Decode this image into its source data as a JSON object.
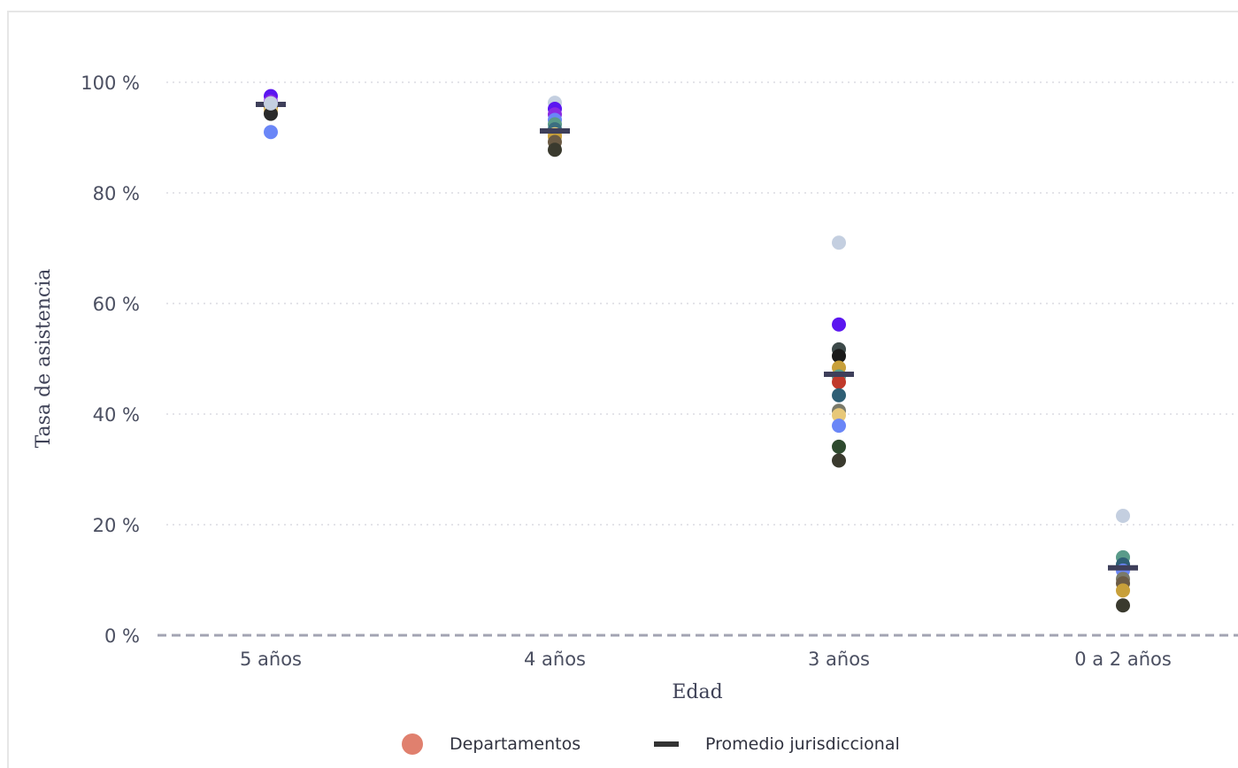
{
  "chart_data": {
    "type": "scatter",
    "xlabel": "Edad",
    "ylabel": "Tasa de asistencia",
    "categories": [
      "5 años",
      "4 años",
      "3 años",
      "0 a 2 años"
    ],
    "ylim": [
      0,
      100
    ],
    "yticks": [
      "0 %",
      "20 %",
      "40 %",
      "60 %",
      "80 %",
      "100 %"
    ],
    "yticks_values": [
      0,
      20,
      40,
      60,
      80,
      100
    ],
    "grid": true,
    "legend_position": "bottom-center",
    "series": [
      {
        "name": "Departamentos",
        "legend_color": "#e0806e",
        "points": [
          {
            "category": "5 años",
            "value": 97.5,
            "color": "#5b16f0"
          },
          {
            "category": "5 años",
            "value": 96.5,
            "color": "#8a2be2"
          },
          {
            "category": "5 años",
            "value": 95.5,
            "color": "#3d3f55"
          },
          {
            "category": "5 años",
            "value": 95.2,
            "color": "#c8a03a"
          },
          {
            "category": "5 años",
            "value": 94.8,
            "color": "#e8c878"
          },
          {
            "category": "5 años",
            "value": 94.3,
            "color": "#2a2a2a"
          },
          {
            "category": "5 años",
            "value": 96.2,
            "color": "#c4cfe0"
          },
          {
            "category": "5 años",
            "value": 91.0,
            "color": "#6a86f7"
          },
          {
            "category": "4 años",
            "value": 96.3,
            "color": "#c4cfe0"
          },
          {
            "category": "4 años",
            "value": 95.2,
            "color": "#5b16f0"
          },
          {
            "category": "4 años",
            "value": 94.2,
            "color": "#8a2be2"
          },
          {
            "category": "4 años",
            "value": 93.2,
            "color": "#6a86f7"
          },
          {
            "category": "4 años",
            "value": 92.4,
            "color": "#5a9b8a"
          },
          {
            "category": "4 años",
            "value": 91.5,
            "color": "#3b6e80"
          },
          {
            "category": "4 años",
            "value": 90.6,
            "color": "#e8c878"
          },
          {
            "category": "4 años",
            "value": 90.2,
            "color": "#c8a03a"
          },
          {
            "category": "4 años",
            "value": 89.2,
            "color": "#6b5b45"
          },
          {
            "category": "4 años",
            "value": 87.8,
            "color": "#3a3a2e"
          },
          {
            "category": "3 años",
            "value": 71.0,
            "color": "#c4cfe0"
          },
          {
            "category": "3 años",
            "value": 56.2,
            "color": "#5b16f0"
          },
          {
            "category": "3 años",
            "value": 51.7,
            "color": "#3d4a4a"
          },
          {
            "category": "3 años",
            "value": 50.5,
            "color": "#1a1a1a"
          },
          {
            "category": "3 años",
            "value": 48.4,
            "color": "#c8a03a"
          },
          {
            "category": "3 años",
            "value": 46.8,
            "color": "#5a9b8a"
          },
          {
            "category": "3 años",
            "value": 45.8,
            "color": "#c0392b"
          },
          {
            "category": "3 años",
            "value": 43.4,
            "color": "#2f5f75"
          },
          {
            "category": "3 años",
            "value": 40.6,
            "color": "#7a7a6a"
          },
          {
            "category": "3 años",
            "value": 39.8,
            "color": "#e8c878"
          },
          {
            "category": "3 años",
            "value": 37.9,
            "color": "#6a86f7"
          },
          {
            "category": "3 años",
            "value": 34.1,
            "color": "#2e4a2e"
          },
          {
            "category": "3 años",
            "value": 31.6,
            "color": "#3a3a2e"
          },
          {
            "category": "0 a 2 años",
            "value": 21.6,
            "color": "#c4cfe0"
          },
          {
            "category": "0 a 2 años",
            "value": 14.1,
            "color": "#5a9b8a"
          },
          {
            "category": "0 a 2 años",
            "value": 12.8,
            "color": "#2f5f75"
          },
          {
            "category": "0 a 2 años",
            "value": 11.7,
            "color": "#6a86f7"
          },
          {
            "category": "0 a 2 años",
            "value": 10.2,
            "color": "#7a7a6a"
          },
          {
            "category": "0 a 2 años",
            "value": 9.4,
            "color": "#6b5b45"
          },
          {
            "category": "0 a 2 años",
            "value": 8.1,
            "color": "#c8a03a"
          },
          {
            "category": "0 a 2 años",
            "value": 5.4,
            "color": "#3a3a2e"
          }
        ]
      },
      {
        "name": "Promedio jurisdiccional",
        "legend_color": "#333333",
        "marker_color": "#3e3f5a",
        "values": [
          96.0,
          91.2,
          47.2,
          12.2
        ]
      }
    ]
  }
}
